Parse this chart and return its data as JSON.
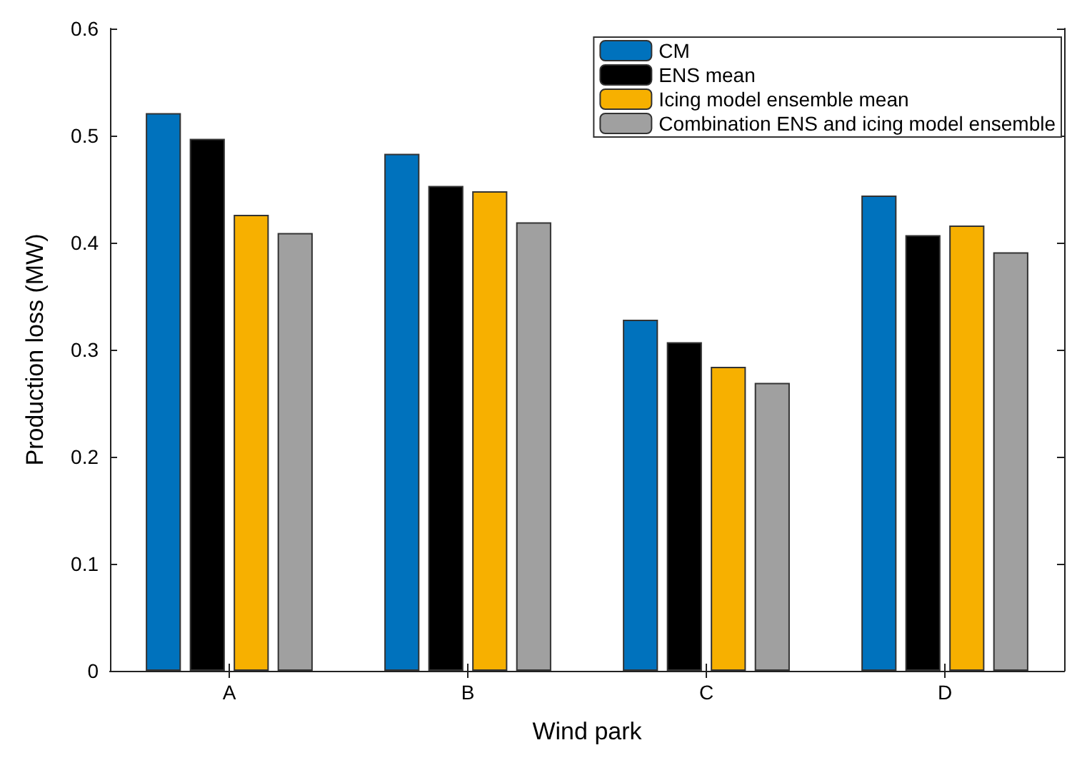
{
  "chart_data": {
    "type": "bar",
    "xlabel": "Wind park",
    "ylabel": "Production loss (MW)",
    "categories": [
      "A",
      "B",
      "C",
      "D"
    ],
    "series": [
      {
        "name": "CM",
        "color": "#0072bd",
        "values": [
          0.521,
          0.483,
          0.328,
          0.444
        ]
      },
      {
        "name": "ENS mean",
        "color": "#000000",
        "values": [
          0.497,
          0.453,
          0.307,
          0.407
        ]
      },
      {
        "name": "Icing model ensemble mean",
        "color": "#f7b000",
        "values": [
          0.426,
          0.448,
          0.284,
          0.416
        ]
      },
      {
        "name": "Combination ENS and icing model ensemble",
        "color": "#a0a0a0",
        "values": [
          0.409,
          0.419,
          0.269,
          0.391
        ]
      }
    ],
    "ylim": [
      0,
      0.6
    ],
    "yticks": [
      0,
      0.1,
      0.2,
      0.3,
      0.4,
      0.5,
      0.6
    ],
    "grid": false,
    "legend": "top right"
  }
}
